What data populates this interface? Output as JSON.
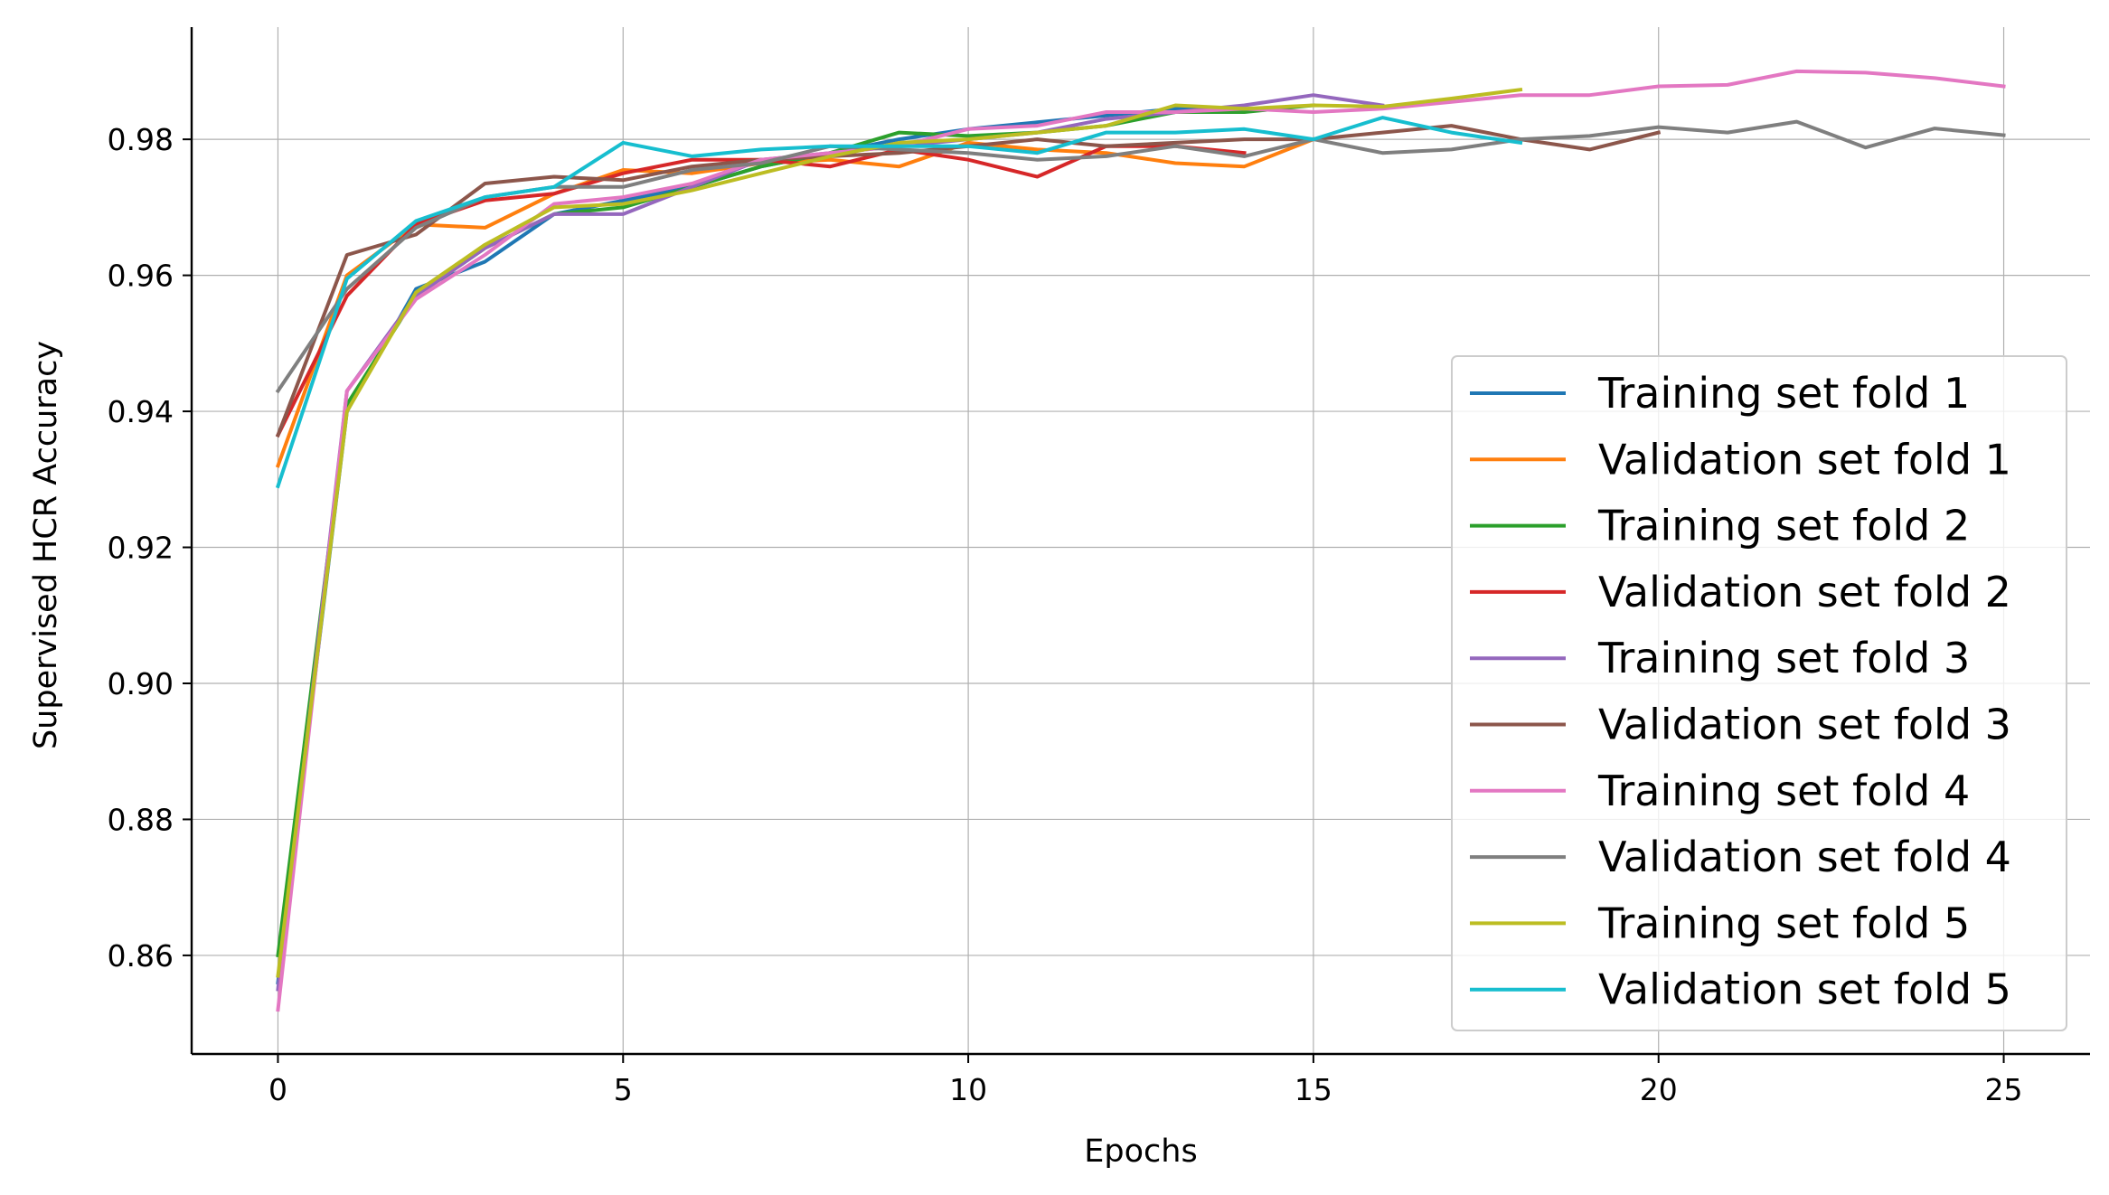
{
  "chart_data": {
    "type": "line",
    "xlabel": "Epochs",
    "ylabel": "Supervised HCR Accuracy",
    "xlim": [
      -1.25,
      26.25
    ],
    "ylim": [
      0.8455,
      0.9965
    ],
    "xticks": [
      0,
      5,
      10,
      15,
      20,
      25
    ],
    "yticks": [
      0.86,
      0.88,
      0.9,
      0.92,
      0.94,
      0.96,
      0.98
    ],
    "grid": true,
    "legend_position": "lower-right",
    "series": [
      {
        "name": "Training set fold 1",
        "color": "#1f77b4",
        "x": [
          0,
          1,
          2,
          3,
          4,
          5,
          6,
          7,
          8,
          9,
          10,
          11,
          12,
          13,
          14
        ],
        "y": [
          0.856,
          0.94,
          0.958,
          0.962,
          0.969,
          0.971,
          0.973,
          0.976,
          0.978,
          0.98,
          0.9815,
          0.9825,
          0.9835,
          0.9845,
          0.9845
        ]
      },
      {
        "name": "Validation set fold 1",
        "color": "#ff7f0e",
        "x": [
          0,
          1,
          2,
          3,
          4,
          5,
          6,
          7,
          8,
          9,
          10,
          11,
          12,
          13,
          14,
          15
        ],
        "y": [
          0.932,
          0.96,
          0.9675,
          0.967,
          0.972,
          0.9755,
          0.975,
          0.9765,
          0.977,
          0.976,
          0.9795,
          0.9785,
          0.978,
          0.9765,
          0.976,
          0.98
        ]
      },
      {
        "name": "Training set fold 2",
        "color": "#2ca02c",
        "x": [
          0,
          1,
          2,
          3,
          4,
          5,
          6,
          7,
          8,
          9,
          10,
          11,
          12,
          13,
          14,
          15
        ],
        "y": [
          0.86,
          0.941,
          0.957,
          0.964,
          0.969,
          0.97,
          0.973,
          0.976,
          0.978,
          0.981,
          0.9805,
          0.981,
          0.982,
          0.984,
          0.984,
          0.985
        ]
      },
      {
        "name": "Validation set fold 2",
        "color": "#d62728",
        "x": [
          0,
          1,
          2,
          3,
          4,
          5,
          6,
          7,
          8,
          9,
          10,
          11,
          12,
          13,
          14
        ],
        "y": [
          0.9365,
          0.957,
          0.9675,
          0.971,
          0.972,
          0.975,
          0.977,
          0.977,
          0.976,
          0.9785,
          0.977,
          0.9745,
          0.979,
          0.979,
          0.978
        ]
      },
      {
        "name": "Training set fold 3",
        "color": "#9467bd",
        "x": [
          0,
          1,
          2,
          3,
          4,
          5,
          6,
          7,
          8,
          9,
          10,
          11,
          12,
          13,
          14,
          15,
          16
        ],
        "y": [
          0.855,
          0.943,
          0.957,
          0.964,
          0.969,
          0.969,
          0.973,
          0.977,
          0.978,
          0.979,
          0.98,
          0.981,
          0.983,
          0.984,
          0.985,
          0.9865,
          0.985
        ]
      },
      {
        "name": "Validation set fold 3",
        "color": "#8c564b",
        "x": [
          0,
          1,
          2,
          3,
          4,
          5,
          6,
          7,
          8,
          9,
          10,
          11,
          12,
          13,
          14,
          15,
          16,
          17,
          18,
          19,
          20
        ],
        "y": [
          0.9365,
          0.963,
          0.966,
          0.9735,
          0.9745,
          0.974,
          0.976,
          0.977,
          0.9775,
          0.978,
          0.979,
          0.98,
          0.979,
          0.9795,
          0.98,
          0.98,
          0.981,
          0.982,
          0.98,
          0.9785,
          0.981
        ]
      },
      {
        "name": "Training set fold 4",
        "color": "#e377c2",
        "x": [
          0,
          1,
          2,
          3,
          4,
          5,
          6,
          7,
          8,
          9,
          10,
          11,
          12,
          13,
          14,
          15,
          16,
          17,
          18,
          19,
          20,
          21,
          22,
          23,
          24,
          25
        ],
        "y": [
          0.852,
          0.943,
          0.9565,
          0.963,
          0.9705,
          0.9715,
          0.9735,
          0.977,
          0.978,
          0.979,
          0.9815,
          0.982,
          0.984,
          0.984,
          0.9845,
          0.984,
          0.9845,
          0.9855,
          0.9865,
          0.9865,
          0.9878,
          0.988,
          0.99,
          0.9898,
          0.989,
          0.9878
        ]
      },
      {
        "name": "Validation set fold 4",
        "color": "#7f7f7f",
        "x": [
          0,
          1,
          2,
          3,
          4,
          5,
          6,
          7,
          8,
          9,
          10,
          11,
          12,
          13,
          14,
          15,
          16,
          17,
          18,
          19,
          20,
          21,
          22,
          23,
          24,
          25
        ],
        "y": [
          0.943,
          0.958,
          0.967,
          0.9715,
          0.973,
          0.973,
          0.9755,
          0.9765,
          0.979,
          0.9785,
          0.978,
          0.977,
          0.9775,
          0.979,
          0.9775,
          0.98,
          0.978,
          0.9785,
          0.98,
          0.9805,
          0.9818,
          0.981,
          0.9826,
          0.9788,
          0.9816,
          0.9806
        ]
      },
      {
        "name": "Training set fold 5",
        "color": "#bcbd22",
        "x": [
          0,
          1,
          2,
          3,
          4,
          5,
          6,
          7,
          8,
          9,
          10,
          11,
          12,
          13,
          14,
          15,
          16,
          17,
          18
        ],
        "y": [
          0.857,
          0.94,
          0.9575,
          0.9645,
          0.97,
          0.9705,
          0.9725,
          0.975,
          0.9775,
          0.9795,
          0.98,
          0.981,
          0.982,
          0.985,
          0.9845,
          0.985,
          0.9848,
          0.986,
          0.9873
        ]
      },
      {
        "name": "Validation set fold 5",
        "color": "#17becf",
        "x": [
          0,
          1,
          2,
          3,
          4,
          5,
          6,
          7,
          8,
          9,
          10,
          11,
          12,
          13,
          14,
          15,
          16,
          17,
          18
        ],
        "y": [
          0.929,
          0.9595,
          0.968,
          0.9715,
          0.973,
          0.9795,
          0.9775,
          0.9785,
          0.979,
          0.979,
          0.979,
          0.978,
          0.981,
          0.981,
          0.9815,
          0.98,
          0.9832,
          0.981,
          0.9795
        ]
      }
    ]
  }
}
